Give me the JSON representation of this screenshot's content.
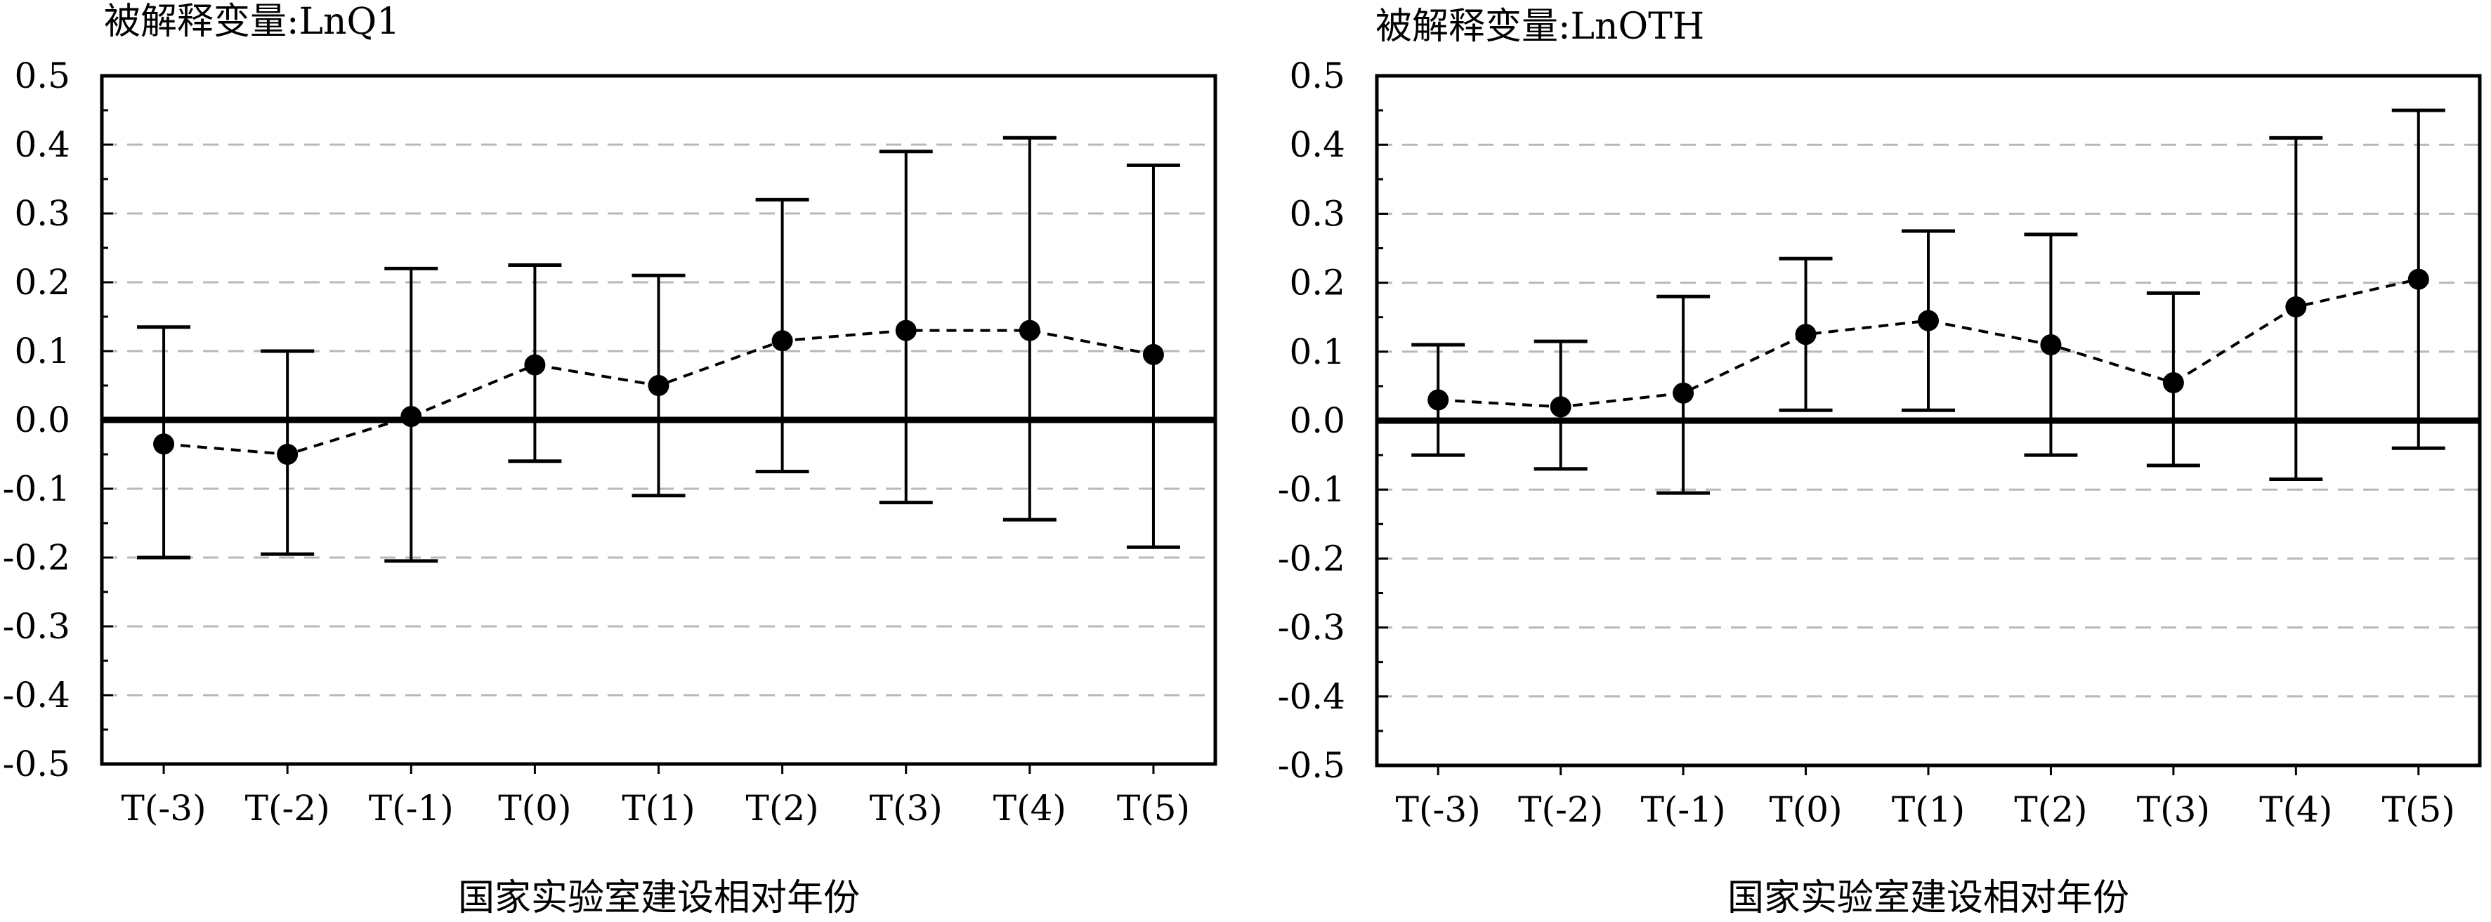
{
  "chart_data": [
    {
      "type": "line",
      "title": "被解释变量:LnQ1",
      "xlabel": "国家实验室建设相对年份",
      "ylabel": "",
      "categories": [
        "T(-3)",
        "T(-2)",
        "T(-1)",
        "T(0)",
        "T(1)",
        "T(2)",
        "T(3)",
        "T(4)",
        "T(5)"
      ],
      "ylim": [
        -0.5,
        0.5
      ],
      "yticks": [
        "0.5",
        "0.4",
        "0.3",
        "0.2",
        "0.1",
        "0.0",
        "-0.1",
        "-0.2",
        "-0.3",
        "-0.4",
        "-0.5"
      ],
      "grid": "dashed horizontal",
      "reference_line": 0,
      "series": [
        {
          "values": [
            -0.035,
            -0.05,
            0.005,
            0.08,
            0.05,
            0.115,
            0.13,
            0.13,
            0.095
          ],
          "ci_lower": [
            -0.2,
            -0.195,
            -0.205,
            -0.06,
            -0.11,
            -0.075,
            -0.12,
            -0.145,
            -0.185
          ],
          "ci_upper": [
            0.135,
            0.1,
            0.22,
            0.225,
            0.21,
            0.32,
            0.39,
            0.41,
            0.37
          ]
        }
      ]
    },
    {
      "type": "line",
      "title": "被解释变量:LnOTH",
      "xlabel": "国家实验室建设相对年份",
      "ylabel": "",
      "categories": [
        "T(-3)",
        "T(-2)",
        "T(-1)",
        "T(0)",
        "T(1)",
        "T(2)",
        "T(3)",
        "T(4)",
        "T(5)"
      ],
      "ylim": [
        -0.5,
        0.5
      ],
      "yticks": [
        "0.5",
        "0.4",
        "0.3",
        "0.2",
        "0.1",
        "0.0",
        "-0.1",
        "-0.2",
        "-0.3",
        "-0.4",
        "-0.5"
      ],
      "grid": "dashed horizontal",
      "reference_line": 0,
      "series": [
        {
          "values": [
            0.03,
            0.02,
            0.04,
            0.125,
            0.145,
            0.11,
            0.055,
            0.165,
            0.205
          ],
          "ci_lower": [
            -0.05,
            -0.07,
            -0.105,
            0.015,
            0.015,
            -0.05,
            -0.065,
            -0.085,
            -0.04
          ],
          "ci_upper": [
            0.11,
            0.115,
            0.18,
            0.235,
            0.275,
            0.27,
            0.185,
            0.41,
            0.45
          ]
        }
      ]
    }
  ]
}
